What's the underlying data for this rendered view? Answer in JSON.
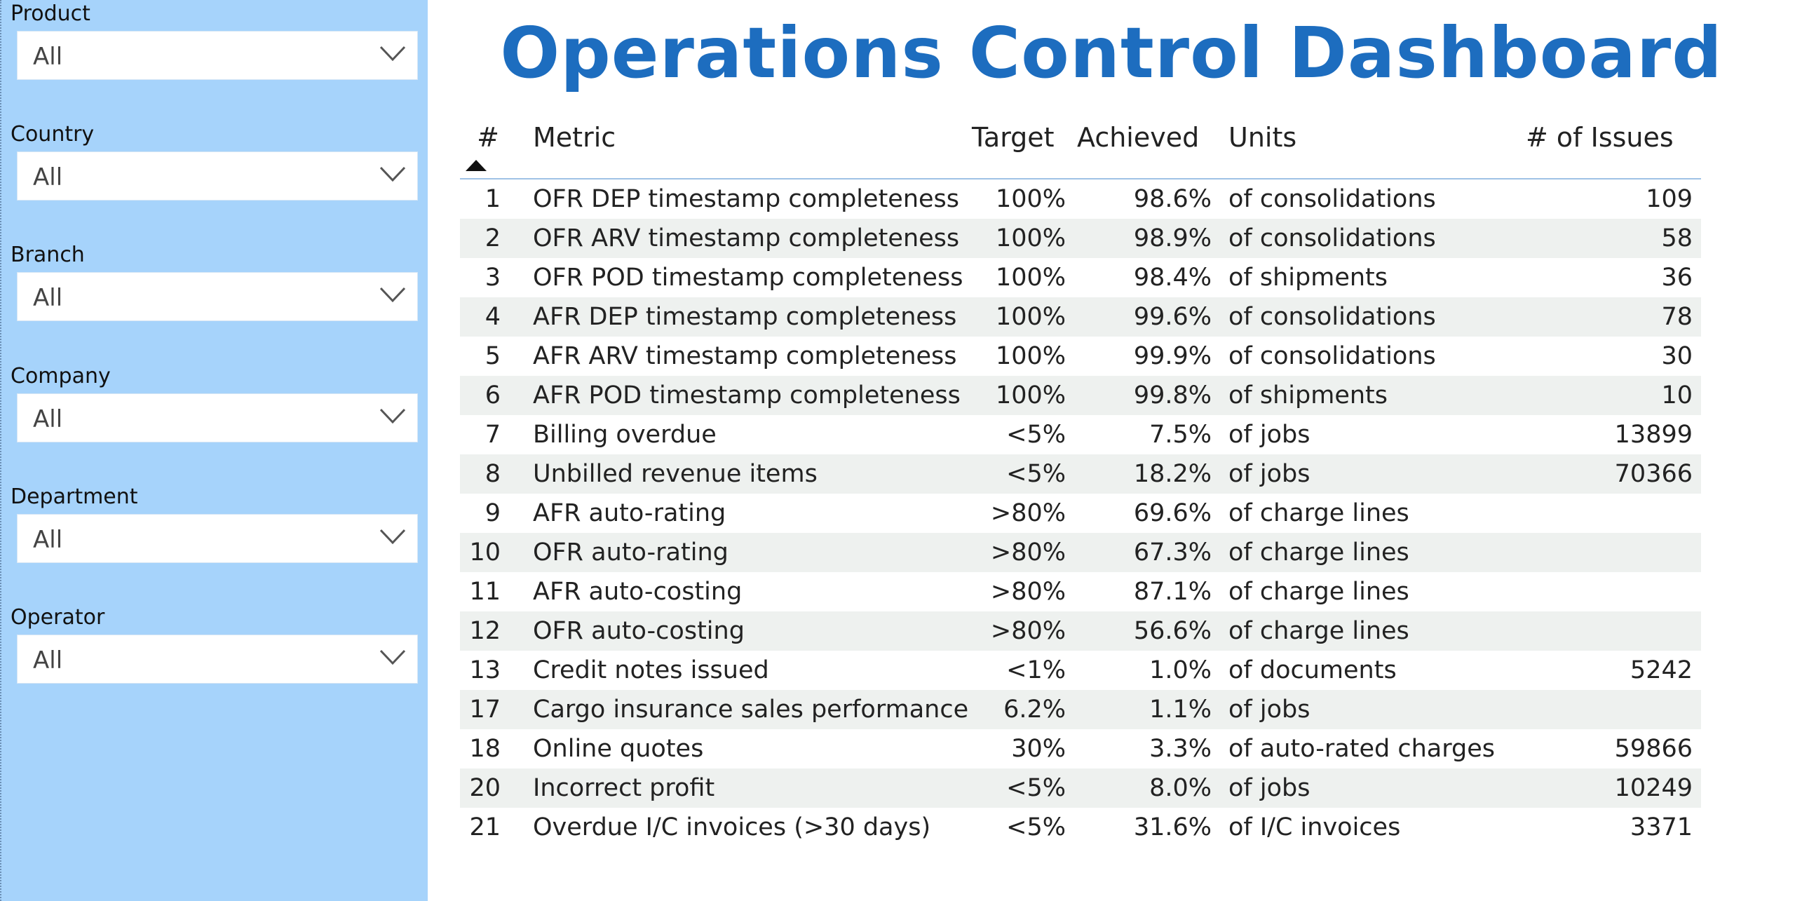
{
  "title": "Operations Control Dashboard",
  "filters": [
    {
      "label": "Product",
      "value": "All"
    },
    {
      "label": "Country",
      "value": "All"
    },
    {
      "label": "Branch",
      "value": "All"
    },
    {
      "label": "Company",
      "value": "All"
    },
    {
      "label": "Department",
      "value": "All"
    },
    {
      "label": "Operator",
      "value": "All"
    }
  ],
  "icons": {
    "dropdown": "chevron-down-icon",
    "sort": "sort-ascending-icon"
  },
  "colors": {
    "sidebar": "#a6d3fb",
    "title": "#1d6dbf",
    "band": "#eef1ef"
  },
  "table": {
    "headers": {
      "num": "#",
      "metric": "Metric",
      "target": "Target",
      "achieved": "Achieved",
      "units": "Units",
      "issues": "# of Issues"
    },
    "rows": [
      {
        "num": "1",
        "metric": "OFR DEP timestamp completeness",
        "target": "100%",
        "achieved": "98.6%",
        "units": "of consolidations",
        "issues": "109"
      },
      {
        "num": "2",
        "metric": "OFR ARV timestamp completeness",
        "target": "100%",
        "achieved": "98.9%",
        "units": "of consolidations",
        "issues": "58"
      },
      {
        "num": "3",
        "metric": "OFR POD timestamp completeness",
        "target": "100%",
        "achieved": "98.4%",
        "units": "of shipments",
        "issues": "36"
      },
      {
        "num": "4",
        "metric": "AFR DEP timestamp completeness",
        "target": "100%",
        "achieved": "99.6%",
        "units": "of consolidations",
        "issues": "78"
      },
      {
        "num": "5",
        "metric": "AFR ARV timestamp completeness",
        "target": "100%",
        "achieved": "99.9%",
        "units": "of consolidations",
        "issues": "30"
      },
      {
        "num": "6",
        "metric": "AFR POD timestamp completeness",
        "target": "100%",
        "achieved": "99.8%",
        "units": "of shipments",
        "issues": "10"
      },
      {
        "num": "7",
        "metric": "Billing overdue",
        "target": "<5%",
        "achieved": "7.5%",
        "units": "of jobs",
        "issues": "13899"
      },
      {
        "num": "8",
        "metric": "Unbilled revenue items",
        "target": "<5%",
        "achieved": "18.2%",
        "units": "of jobs",
        "issues": "70366"
      },
      {
        "num": "9",
        "metric": "AFR auto-rating",
        "target": ">80%",
        "achieved": "69.6%",
        "units": "of charge lines",
        "issues": ""
      },
      {
        "num": "10",
        "metric": "OFR auto-rating",
        "target": ">80%",
        "achieved": "67.3%",
        "units": "of charge lines",
        "issues": ""
      },
      {
        "num": "11",
        "metric": "AFR auto-costing",
        "target": ">80%",
        "achieved": "87.1%",
        "units": "of charge lines",
        "issues": ""
      },
      {
        "num": "12",
        "metric": "OFR auto-costing",
        "target": ">80%",
        "achieved": "56.6%",
        "units": "of charge lines",
        "issues": ""
      },
      {
        "num": "13",
        "metric": "Credit notes issued",
        "target": "<1%",
        "achieved": "1.0%",
        "units": "of documents",
        "issues": "5242"
      },
      {
        "num": "17",
        "metric": "Cargo insurance sales performance",
        "target": "6.2%",
        "achieved": "1.1%",
        "units": "of jobs",
        "issues": ""
      },
      {
        "num": "18",
        "metric": "Online quotes",
        "target": "30%",
        "achieved": "3.3%",
        "units": "of auto-rated charges",
        "issues": "59866"
      },
      {
        "num": "20",
        "metric": "Incorrect profit",
        "target": "<5%",
        "achieved": "8.0%",
        "units": "of jobs",
        "issues": "10249"
      },
      {
        "num": "21",
        "metric": "Overdue I/C invoices (>30 days)",
        "target": "<5%",
        "achieved": "31.6%",
        "units": "of I/C invoices",
        "issues": "3371"
      }
    ]
  }
}
